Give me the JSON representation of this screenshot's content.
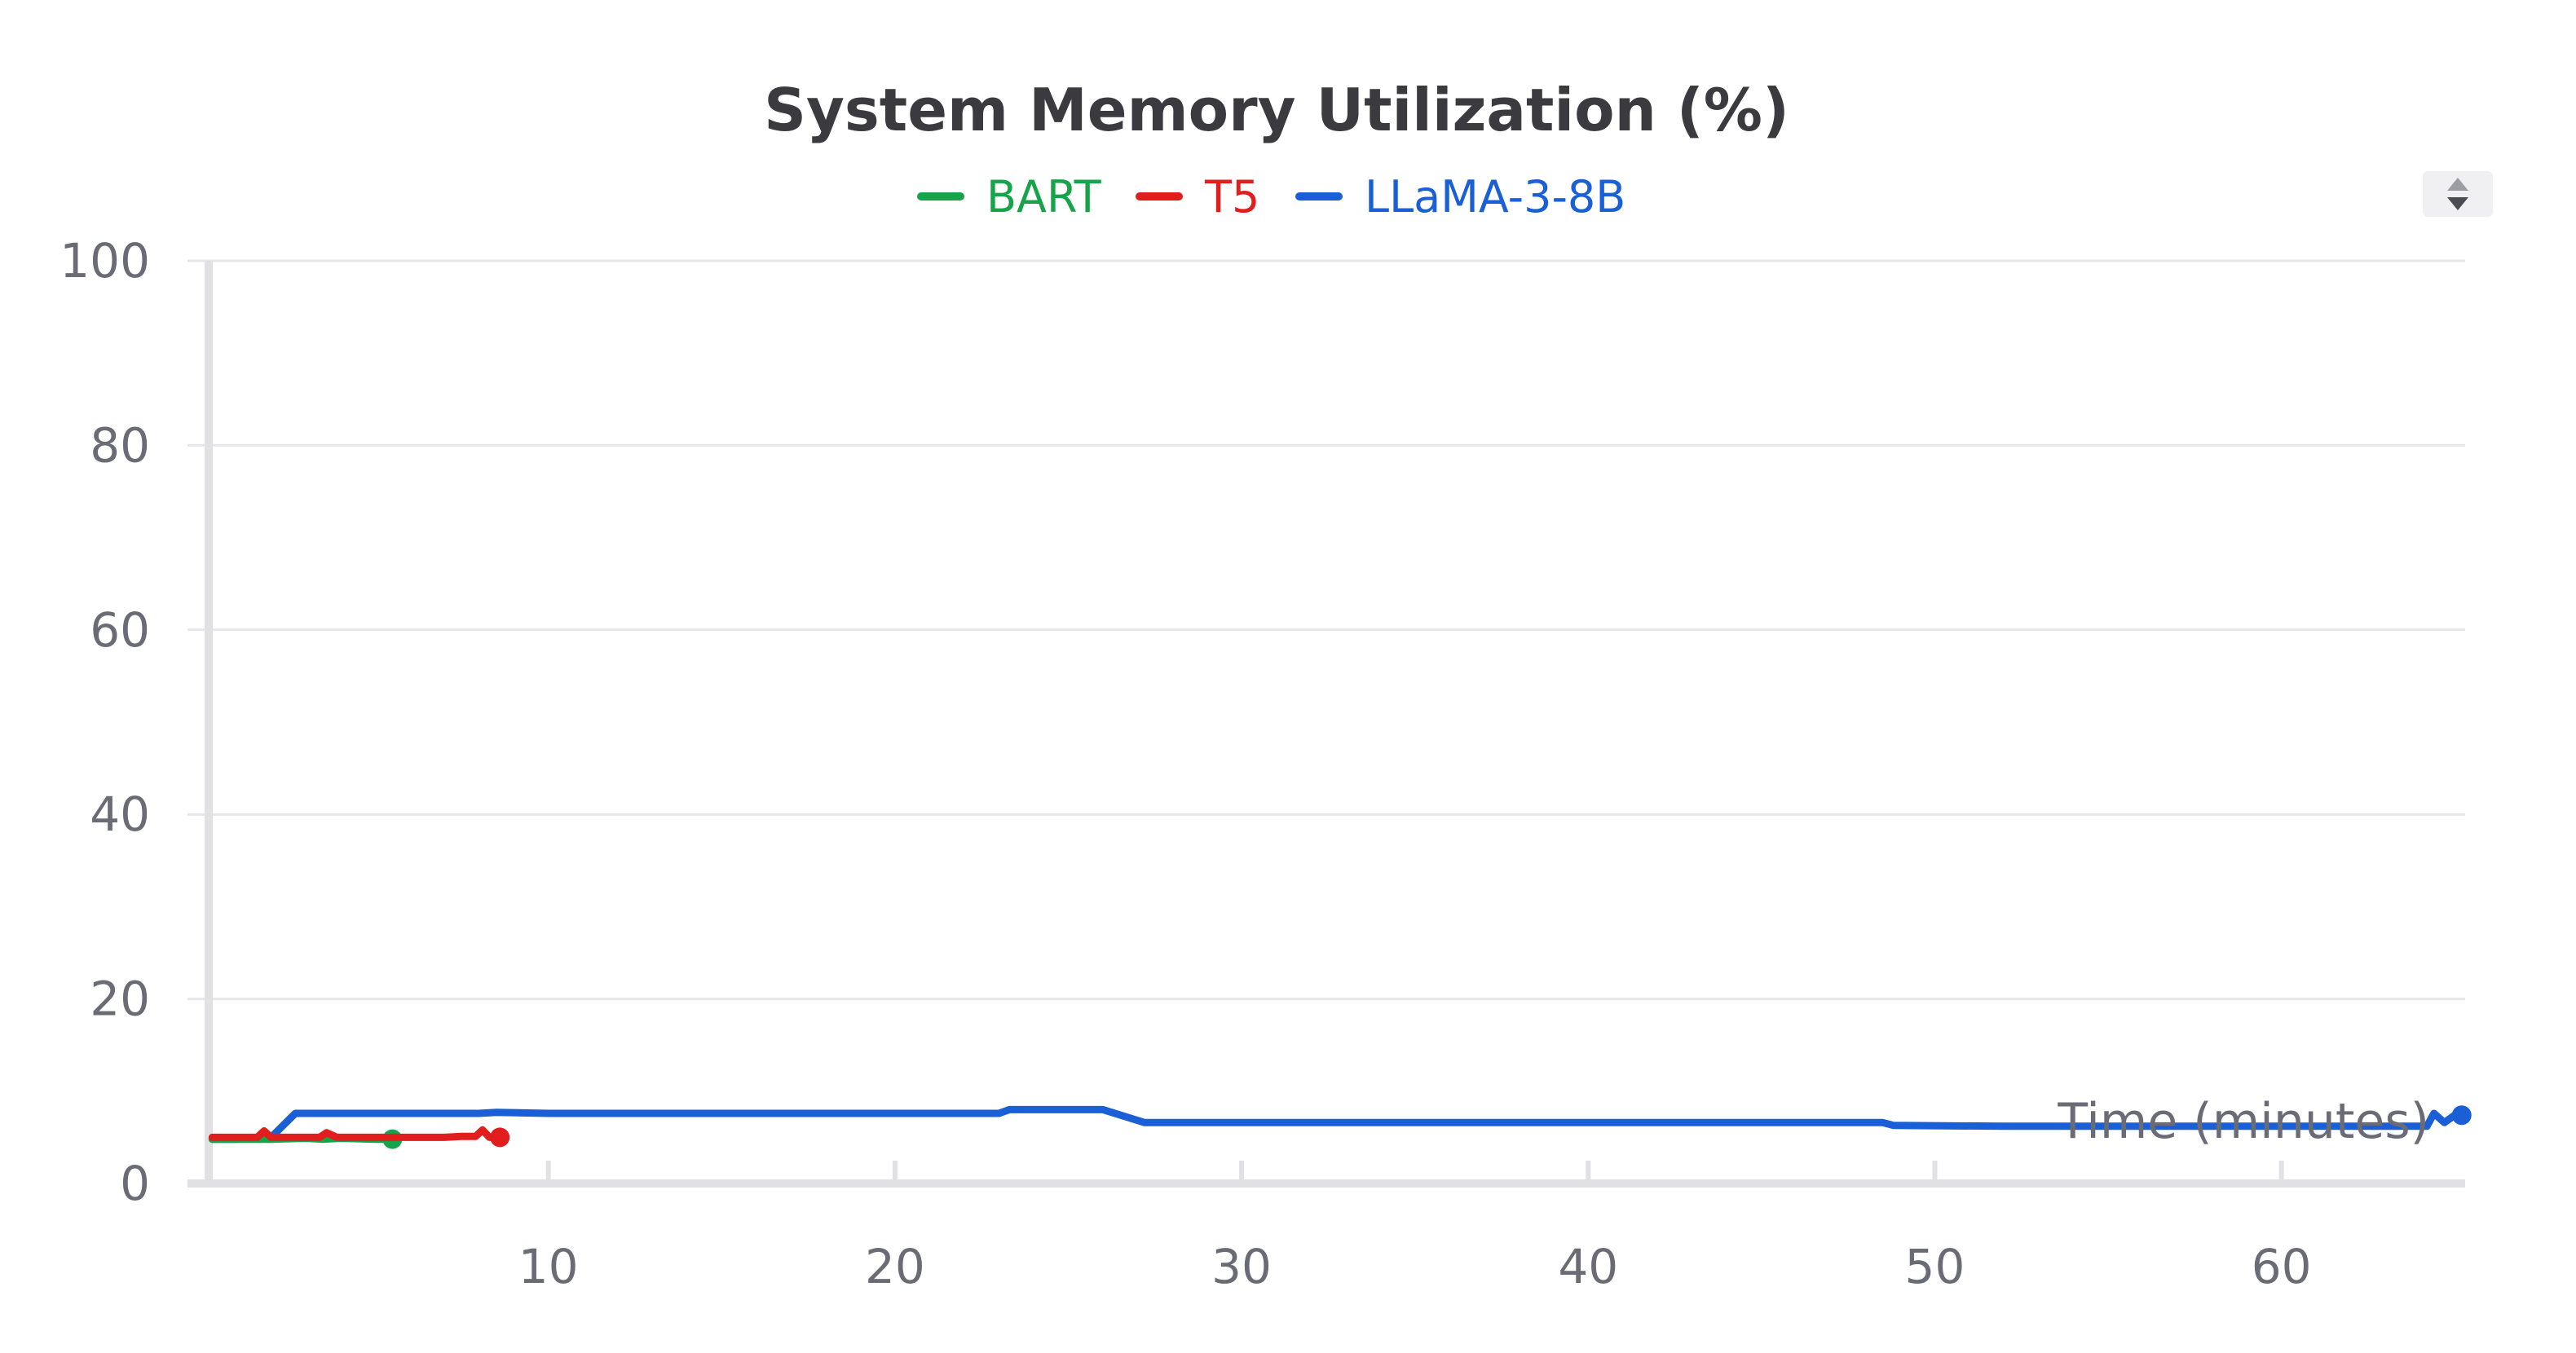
{
  "chart_data": {
    "type": "line",
    "title": "System Memory Utilization (%)",
    "xlabel": "Time (minutes)",
    "ylabel": "",
    "xlim": [
      0.2,
      65.3
    ],
    "ylim": [
      0,
      100
    ],
    "x_ticks": [
      10,
      20,
      30,
      40,
      50,
      60
    ],
    "y_ticks": [
      0,
      20,
      40,
      60,
      80,
      100
    ],
    "grid": "horizontal",
    "legend_position": "top-center",
    "series": [
      {
        "name": "BART",
        "color": "#16a34a",
        "x": [
          0.3,
          1.0,
          2.0,
          3.0,
          3.5,
          4.0,
          5.0,
          5.5
        ],
        "y": [
          4.8,
          4.8,
          4.8,
          4.9,
          4.8,
          4.9,
          4.8,
          4.8
        ]
      },
      {
        "name": "T5",
        "color": "#e11d1d",
        "x": [
          0.3,
          1.0,
          1.6,
          1.8,
          2.0,
          2.5,
          3.0,
          3.4,
          3.6,
          3.9,
          4.5,
          5.0,
          5.5,
          6.0,
          6.5,
          7.0,
          7.5,
          7.9,
          8.1,
          8.3,
          8.6
        ],
        "y": [
          5.0,
          5.0,
          5.0,
          5.7,
          5.0,
          5.0,
          5.0,
          5.0,
          5.5,
          5.0,
          5.0,
          5.0,
          5.0,
          5.0,
          5.0,
          5.0,
          5.1,
          5.1,
          5.8,
          5.0,
          5.0
        ]
      },
      {
        "name": "LLaMA-3-8B",
        "color": "#1a5fd6",
        "x": [
          0.3,
          1.0,
          2.0,
          2.7,
          3.0,
          5.0,
          8.0,
          8.5,
          10.0,
          15.0,
          20.0,
          23.0,
          23.3,
          26.0,
          27.2,
          30.0,
          35.0,
          40.0,
          45.0,
          48.5,
          48.8,
          52.0,
          55.0,
          60.0,
          64.0,
          64.2,
          64.4,
          64.7,
          65.0,
          65.2
        ],
        "y": [
          4.8,
          4.8,
          5.0,
          7.6,
          7.6,
          7.6,
          7.6,
          7.7,
          7.6,
          7.6,
          7.6,
          7.6,
          8.0,
          8.0,
          6.6,
          6.6,
          6.6,
          6.6,
          6.6,
          6.6,
          6.3,
          6.2,
          6.2,
          6.2,
          6.2,
          6.2,
          7.6,
          6.6,
          7.4,
          7.4
        ]
      }
    ]
  }
}
